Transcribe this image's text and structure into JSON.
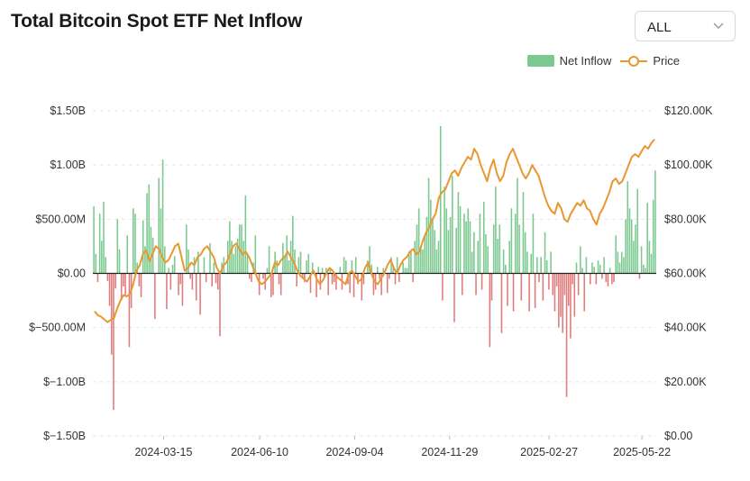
{
  "header": {
    "title": "Total Bitcoin Spot ETF Net Inflow",
    "range_select": {
      "value": "ALL"
    }
  },
  "colors": {
    "inflow": "#7cc98f",
    "outflow": "#e07b7b",
    "price": "#e8982f",
    "grid": "#e6e6e6",
    "zero": "#222222"
  },
  "icons": {
    "select_chevron": "chevron-down-icon"
  },
  "chart_data": {
    "type": "bar",
    "title": "Total Bitcoin Spot ETF Net Inflow",
    "legend_placement": "top-right",
    "grid": true,
    "series": [
      {
        "name": "Net Inflow",
        "type": "bar",
        "axis": "left",
        "unit": "USD",
        "values": [
          0.62,
          0.18,
          -0.08,
          0.55,
          0.3,
          0.66,
          0.15,
          -0.07,
          -0.3,
          -0.75,
          -1.26,
          -0.14,
          0.5,
          0.22,
          -0.25,
          -0.12,
          -0.2,
          0.35,
          -0.68,
          -0.32,
          0.6,
          0.55,
          0.1,
          -0.12,
          -0.22,
          0.49,
          0.25,
          0.74,
          0.82,
          0.43,
          0.33,
          -0.42,
          0.0,
          0.88,
          0.6,
          1.05,
          0.25,
          -0.33,
          0.05,
          -0.15,
          0.08,
          0.16,
          0.0,
          -0.2,
          -0.1,
          -0.3,
          0.0,
          0.45,
          0.22,
          -0.05,
          -0.15,
          0.15,
          -0.25,
          0.2,
          -0.38,
          0.0,
          0.15,
          -0.08,
          0.0,
          0.28,
          -0.12,
          0.1,
          -0.09,
          -0.15,
          -0.58,
          0.1,
          0.15,
          0.0,
          0.3,
          0.48,
          0.3,
          0.18,
          0.25,
          0.32,
          0.45,
          0.45,
          0.3,
          0.72,
          0.18,
          -0.05,
          -0.08,
          0.1,
          0.35,
          0.0,
          -0.2,
          0.0,
          -0.05,
          -0.15,
          0.05,
          0.25,
          -0.22,
          -0.2,
          0.2,
          0.12,
          -0.1,
          -0.2,
          0.28,
          0.15,
          0.35,
          0.12,
          0.3,
          0.53,
          0.22,
          -0.12,
          0.15,
          0.2,
          -0.05,
          -0.08,
          0.12,
          0.18,
          -0.18,
          0.1,
          0.0,
          -0.22,
          0.06,
          -0.15,
          0.05,
          -0.05,
          0.05,
          -0.2,
          0.05,
          -0.1,
          -0.08,
          -0.15,
          0.0,
          0.06,
          -0.15,
          0.15,
          0.12,
          -0.1,
          -0.18,
          0.12,
          -0.22,
          0.15,
          -0.1,
          0.0,
          -0.25,
          -0.1,
          0.0,
          0.12,
          0.25,
          0.08,
          -0.2,
          -0.15,
          0.06,
          -0.05,
          -0.2,
          0.05,
          0.0,
          -0.18,
          -0.05,
          0.15,
          0.06,
          -0.1,
          0.15,
          -0.08,
          0.0,
          0.1,
          0.05,
          0.05,
          0.2,
          0.2,
          -0.08,
          0.3,
          0.45,
          0.6,
          0.25,
          0.22,
          0.35,
          0.52,
          0.88,
          0.68,
          0.5,
          0.4,
          0.22,
          0.3,
          1.36,
          -0.25,
          0.8,
          0.6,
          0.4,
          0.52,
          0.9,
          -0.45,
          0.42,
          0.75,
          0.62,
          -0.2,
          0.55,
          0.48,
          0.6,
          0.48,
          0.2,
          0.38,
          -0.2,
          0.3,
          0.55,
          -0.15,
          0.66,
          0.36,
          0.25,
          -0.68,
          -0.25,
          0.45,
          0.8,
          0.32,
          0.45,
          -0.55,
          0.22,
          0.08,
          -0.3,
          0.3,
          0.6,
          -0.35,
          0.55,
          0.88,
          0.45,
          -0.25,
          0.75,
          0.38,
          0.2,
          -0.35,
          0.18,
          0.55,
          -0.32,
          0.15,
          -0.08,
          0.15,
          -0.25,
          0.38,
          0.12,
          -0.15,
          0.2,
          -0.2,
          -0.35,
          -0.12,
          -0.5,
          -0.4,
          -0.55,
          -0.2,
          -1.14,
          -0.3,
          -0.6,
          -0.1,
          -0.4,
          0.1,
          -0.2,
          0.25,
          0.05,
          -0.35,
          0.15,
          0.0,
          -0.1,
          0.1,
          0.06,
          -0.1,
          0.12,
          0.08,
          -0.05,
          0.15,
          -0.08,
          -0.12,
          0.05,
          -0.1,
          -0.08,
          0.35,
          0.2,
          0.1,
          0.2,
          0.15,
          0.5,
          0.85,
          0.6,
          0.5,
          0.3,
          0.45,
          0.78,
          -0.05,
          0.25,
          0.08,
          0.05,
          0.65,
          0.3,
          0.18,
          0.68,
          0.95
        ]
      },
      {
        "name": "Price",
        "type": "line",
        "axis": "right",
        "unit": "USD",
        "values": [
          46000,
          44500,
          44000,
          43000,
          42000,
          42800,
          43500,
          47000,
          50000,
          52000,
          51500,
          52500,
          56000,
          61000,
          63000,
          67000,
          68500,
          64500,
          67000,
          70000,
          69000,
          66000,
          64000,
          65000,
          67500,
          70000,
          71000,
          66000,
          61000,
          62000,
          64000,
          63000,
          66000,
          67000,
          69000,
          70000,
          68000,
          66000,
          62000,
          60000,
          63000,
          64000,
          67000,
          70000,
          71000,
          69000,
          67000,
          68000,
          66000,
          63000,
          60000,
          57000,
          56000,
          57000,
          58500,
          60000,
          64000,
          63000,
          65000,
          66000,
          68000,
          66000,
          64000,
          61000,
          59000,
          58000,
          57000,
          59000,
          61000,
          58000,
          56000,
          57500,
          60000,
          62000,
          61000,
          59000,
          58000,
          57000,
          56000,
          60000,
          61000,
          59000,
          57000,
          58000,
          62000,
          64000,
          60000,
          57000,
          56000,
          58000,
          60000,
          63000,
          65000,
          62000,
          60000,
          63000,
          65000,
          66000,
          68000,
          69000,
          67000,
          68000,
          72000,
          75000,
          77000,
          80000,
          82000,
          88000,
          90000,
          91000,
          94000,
          97000,
          98000,
          96000,
          99000,
          101000,
          103000,
          102000,
          106000,
          104000,
          100000,
          97000,
          94000,
          99000,
          102000,
          97000,
          94000,
          96000,
          101000,
          104000,
          106000,
          103000,
          100000,
          97000,
          95000,
          97000,
          100000,
          98000,
          96000,
          92000,
          88000,
          85000,
          83000,
          82000,
          86000,
          84000,
          80000,
          79000,
          82000,
          84000,
          86000,
          85000,
          87000,
          84000,
          83000,
          80000,
          78000,
          82000,
          84000,
          87000,
          90000,
          94000,
          95000,
          93000,
          94000,
          97000,
          100000,
          103000,
          104000,
          103000,
          105000,
          107000,
          106000,
          108000,
          109500
        ]
      }
    ],
    "y_left": {
      "min": -1.5,
      "max": 1.5,
      "ticks": [
        1.5,
        1.0,
        0.5,
        0.0,
        -0.5,
        -1.0,
        -1.5
      ],
      "tick_labels": [
        "$1.50B",
        "$1.00B",
        "$500.00M",
        "$0.00",
        "$−500.00M",
        "$−1.00B",
        "$−1.50B"
      ]
    },
    "y_right": {
      "min": 0,
      "max": 120000,
      "ticks": [
        120000,
        100000,
        80000,
        60000,
        40000,
        20000,
        0
      ],
      "tick_labels": [
        "$120.00K",
        "$100.00K",
        "$80.00K",
        "$60.00K",
        "$40.00K",
        "$20.00K",
        "$0.00"
      ]
    },
    "x": {
      "start": "2024-01-11",
      "end": "2025-06-04",
      "ticks": [
        "2024-03-15",
        "2024-06-10",
        "2024-09-04",
        "2024-11-29",
        "2025-02-27",
        "2025-05-22"
      ]
    }
  }
}
